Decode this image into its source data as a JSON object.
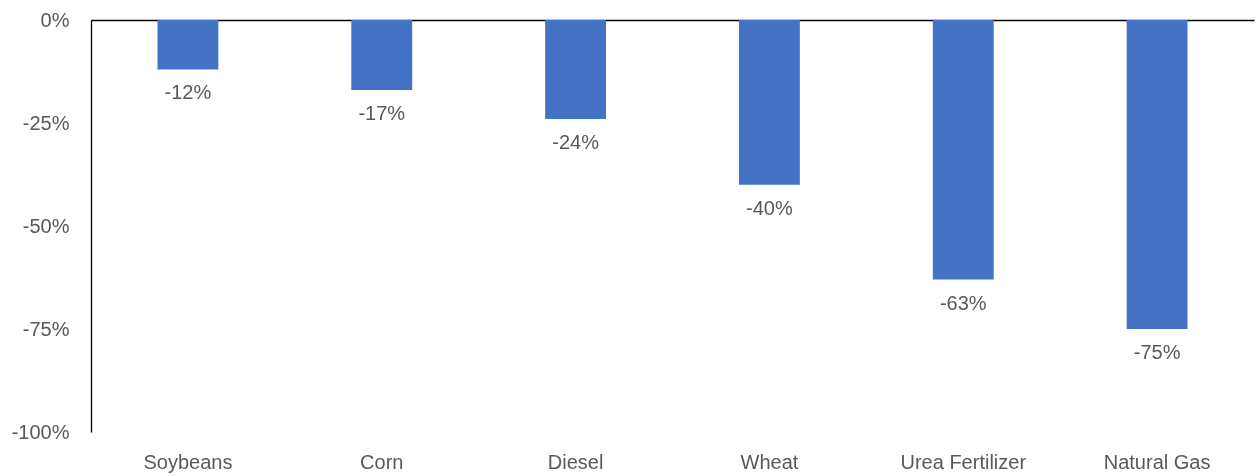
{
  "chart_data": {
    "type": "bar",
    "categories": [
      "Soybeans",
      "Corn",
      "Diesel",
      "Wheat",
      "Urea Fertilizer",
      "Natural Gas"
    ],
    "values": [
      -12,
      -17,
      -24,
      -40,
      -63,
      -75
    ],
    "color": "#4472c4",
    "value_labels": [
      "-12%",
      "-17%",
      "-24%",
      "-40%",
      "-63%",
      "-75%"
    ],
    "ylim": [
      -100,
      0
    ],
    "yticks": [
      {
        "value": 0,
        "label": "0%"
      },
      {
        "value": -25,
        "label": "-25%"
      },
      {
        "value": -50,
        "label": "-50%"
      },
      {
        "value": -75,
        "label": "-75%"
      },
      {
        "value": -100,
        "label": "-100%"
      }
    ],
    "grid": false
  }
}
